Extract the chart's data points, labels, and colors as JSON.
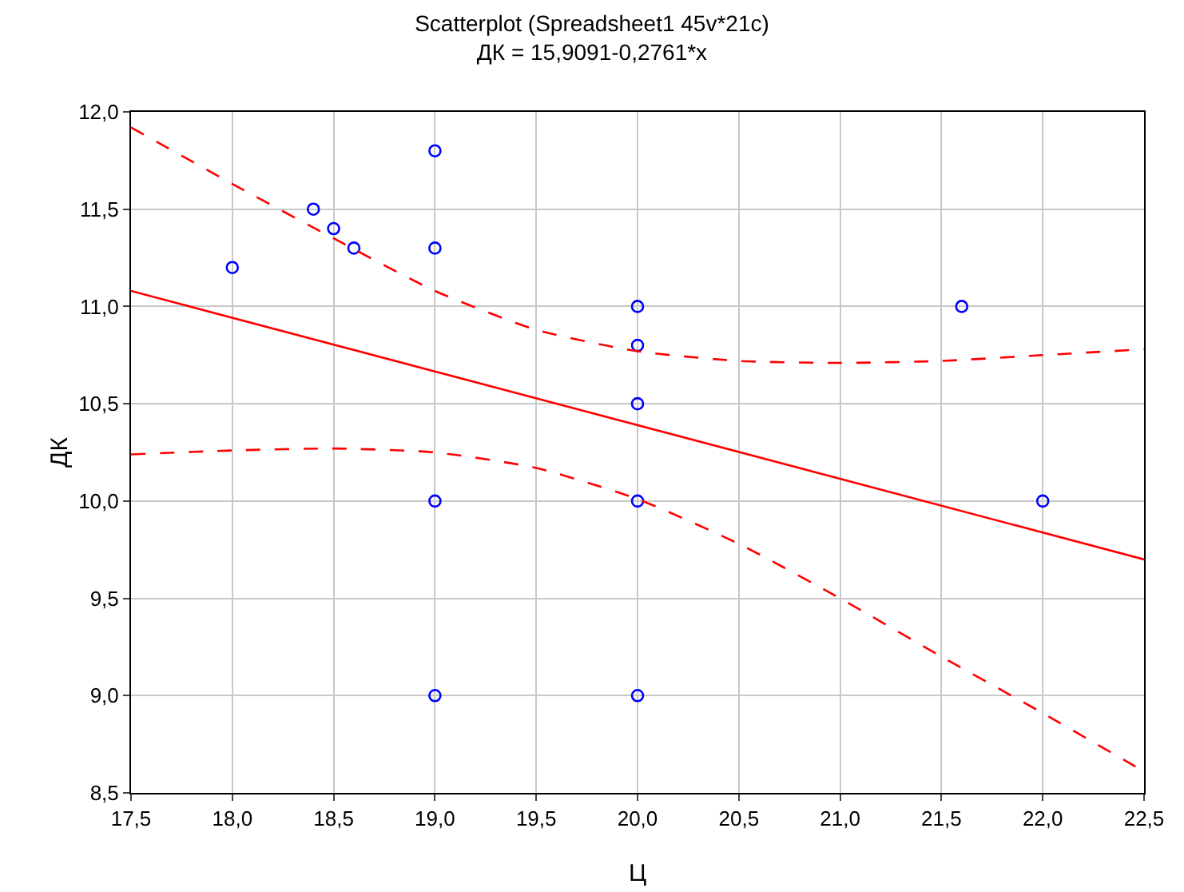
{
  "chart_data": {
    "type": "scatter",
    "title": "Scatterplot (Spreadsheet1 45v*21c)",
    "subtitle": "ДК = 15,9091-0,2761*x",
    "xlabel": "Ц",
    "ylabel": "ДК",
    "series": [
      {
        "color": "#0000ff",
        "marker": "circle",
        "x": [
          18.0,
          18.4,
          18.5,
          18.6,
          19.0,
          19.0,
          19.0,
          19.0,
          20.0,
          20.0,
          20.0,
          20.0,
          20.0,
          21.6,
          22.0
        ],
        "values": [
          11.2,
          11.5,
          11.4,
          11.3,
          11.8,
          11.3,
          10.0,
          9.0,
          11.0,
          10.8,
          10.5,
          10.0,
          9.0,
          11.0,
          10.0
        ]
      },
      {
        "type": "line",
        "color": "#ff0000",
        "line_style": "solid",
        "x": [
          17.5,
          22.5
        ],
        "values": [
          11.08,
          9.7
        ]
      },
      {
        "type": "line",
        "color": "#ff0000",
        "line_style": "dashed",
        "x": [
          17.5,
          18.0,
          18.5,
          19.0,
          19.5,
          20.0,
          20.5,
          21.0,
          21.5,
          22.0,
          22.5
        ],
        "values": [
          11.92,
          11.63,
          11.35,
          11.08,
          10.88,
          10.77,
          10.72,
          10.71,
          10.72,
          10.75,
          10.78
        ]
      },
      {
        "type": "line",
        "color": "#ff0000",
        "line_style": "dashed",
        "x": [
          17.5,
          18.0,
          18.5,
          19.0,
          19.5,
          20.0,
          20.5,
          21.0,
          21.5,
          22.0,
          22.5
        ],
        "values": [
          10.24,
          10.26,
          10.27,
          10.25,
          10.17,
          10.01,
          9.78,
          9.5,
          9.2,
          8.91,
          8.61
        ]
      }
    ],
    "xlim": [
      17.5,
      22.5
    ],
    "xticks": [
      {
        "value": 17.5,
        "label": "17,5"
      },
      {
        "value": 18,
        "label": "18,0"
      },
      {
        "value": 18.5,
        "label": "18,5"
      },
      {
        "value": 19,
        "label": "19,0"
      },
      {
        "value": 19.5,
        "label": "19,5"
      },
      {
        "value": 20,
        "label": "20,0"
      },
      {
        "value": 20.5,
        "label": "20,5"
      },
      {
        "value": 21,
        "label": "21,0"
      },
      {
        "value": 21.5,
        "label": "21,5"
      },
      {
        "value": 22,
        "label": "22,0"
      },
      {
        "value": 22.5,
        "label": "22,5"
      }
    ],
    "ylim": [
      8.5,
      12
    ],
    "yticks": [
      {
        "value": 8.5,
        "label": "8,5"
      },
      {
        "value": 9,
        "label": "9,0"
      },
      {
        "value": 9.5,
        "label": "9,5"
      },
      {
        "value": 10,
        "label": "10,0"
      },
      {
        "value": 10.5,
        "label": "10,5"
      },
      {
        "value": 11,
        "label": "11,0"
      },
      {
        "value": 11.5,
        "label": "11,5"
      },
      {
        "value": 12,
        "label": "12,0"
      }
    ],
    "grid": true
  }
}
